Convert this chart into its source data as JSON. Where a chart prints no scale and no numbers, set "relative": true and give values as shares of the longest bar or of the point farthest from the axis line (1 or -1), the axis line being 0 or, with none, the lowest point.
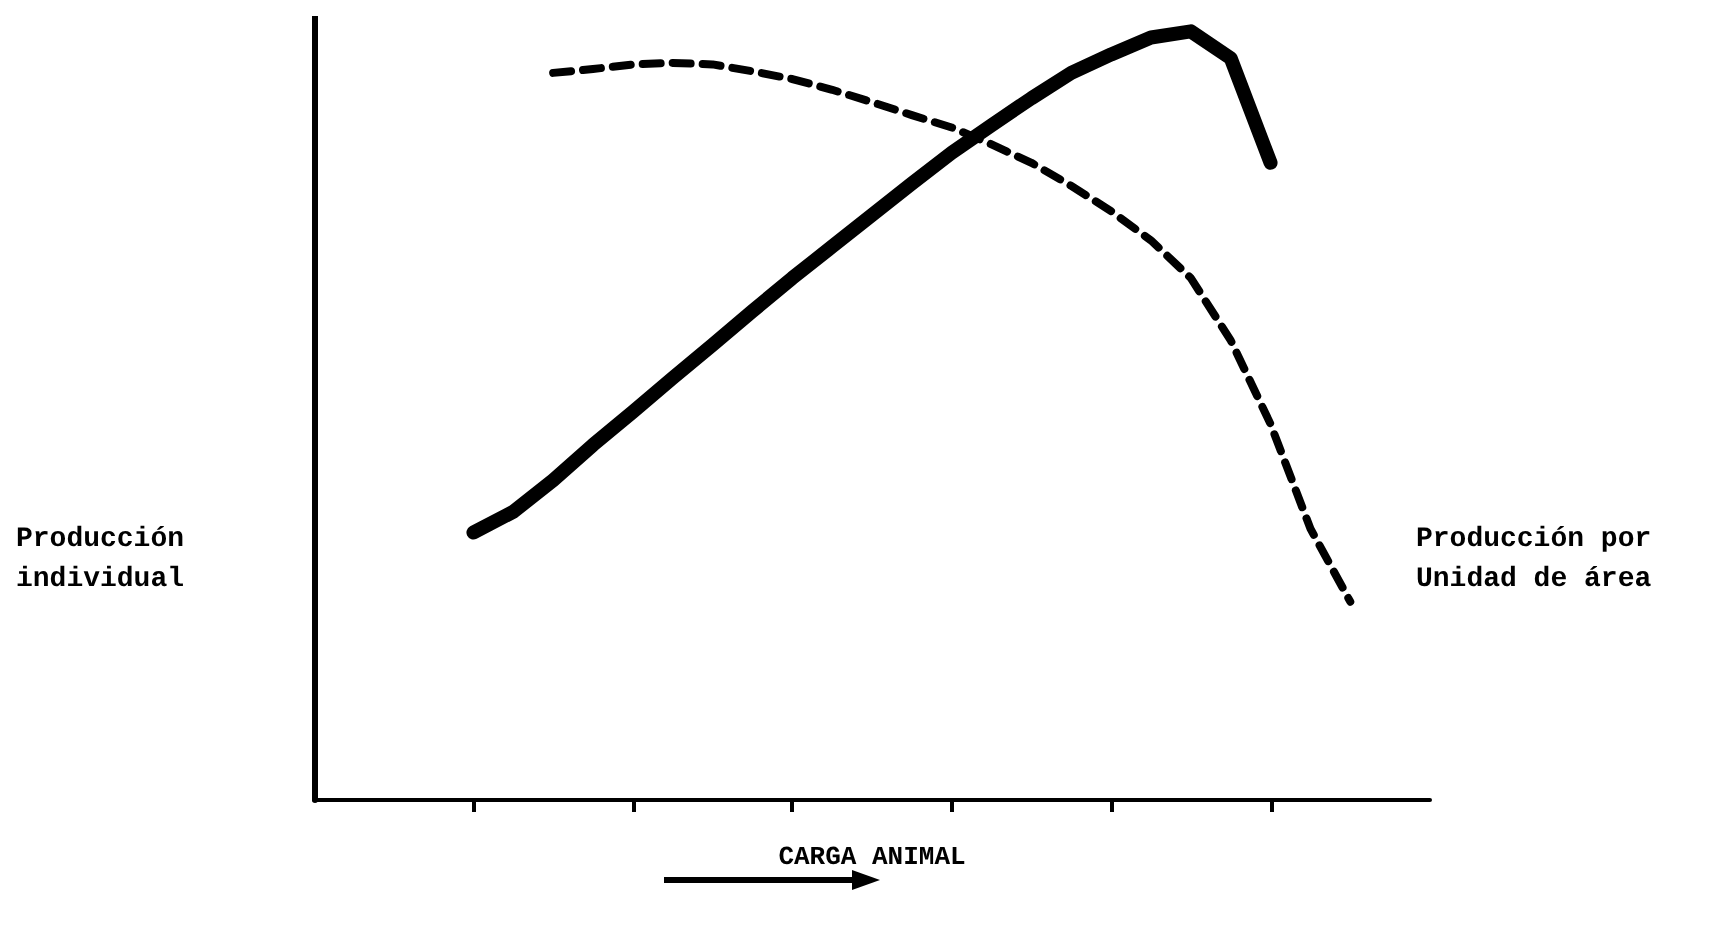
{
  "chart_data": {
    "type": "line",
    "relative": true,
    "xlabel": "CARGA ANIMAL",
    "ylabel": "Producción individual",
    "y2label": "Producción por Unidad de área",
    "marker": "none",
    "categories": [
      null,
      null,
      null,
      null,
      null,
      null,
      null,
      null,
      null,
      null,
      null,
      null,
      null,
      null,
      null,
      null,
      null,
      null,
      null,
      null,
      null,
      null,
      null,
      null,
      null,
      null,
      null,
      null,
      null
    ],
    "series": [
      {
        "color": "#000000",
        "line_style": "solid",
        "values": [
          null,
          null,
          null,
          null,
          0.348,
          0.375,
          0.416,
          0.462,
          0.505,
          0.549,
          0.592,
          0.636,
          0.679,
          0.72,
          0.761,
          0.802,
          0.842,
          0.878,
          0.913,
          0.946,
          0.97,
          0.992,
          1.0,
          0.965,
          0.829,
          null,
          null,
          null,
          null
        ]
      },
      {
        "color": "#000000",
        "line_style": "dashed",
        "values": [
          null,
          null,
          null,
          null,
          null,
          null,
          0.946,
          0.951,
          0.957,
          0.959,
          0.957,
          0.948,
          0.938,
          0.924,
          0.908,
          0.891,
          0.875,
          0.853,
          0.829,
          0.799,
          0.766,
          0.728,
          0.679,
          0.598,
          0.489,
          0.353,
          0.258,
          null,
          null
        ]
      }
    ]
  }
}
